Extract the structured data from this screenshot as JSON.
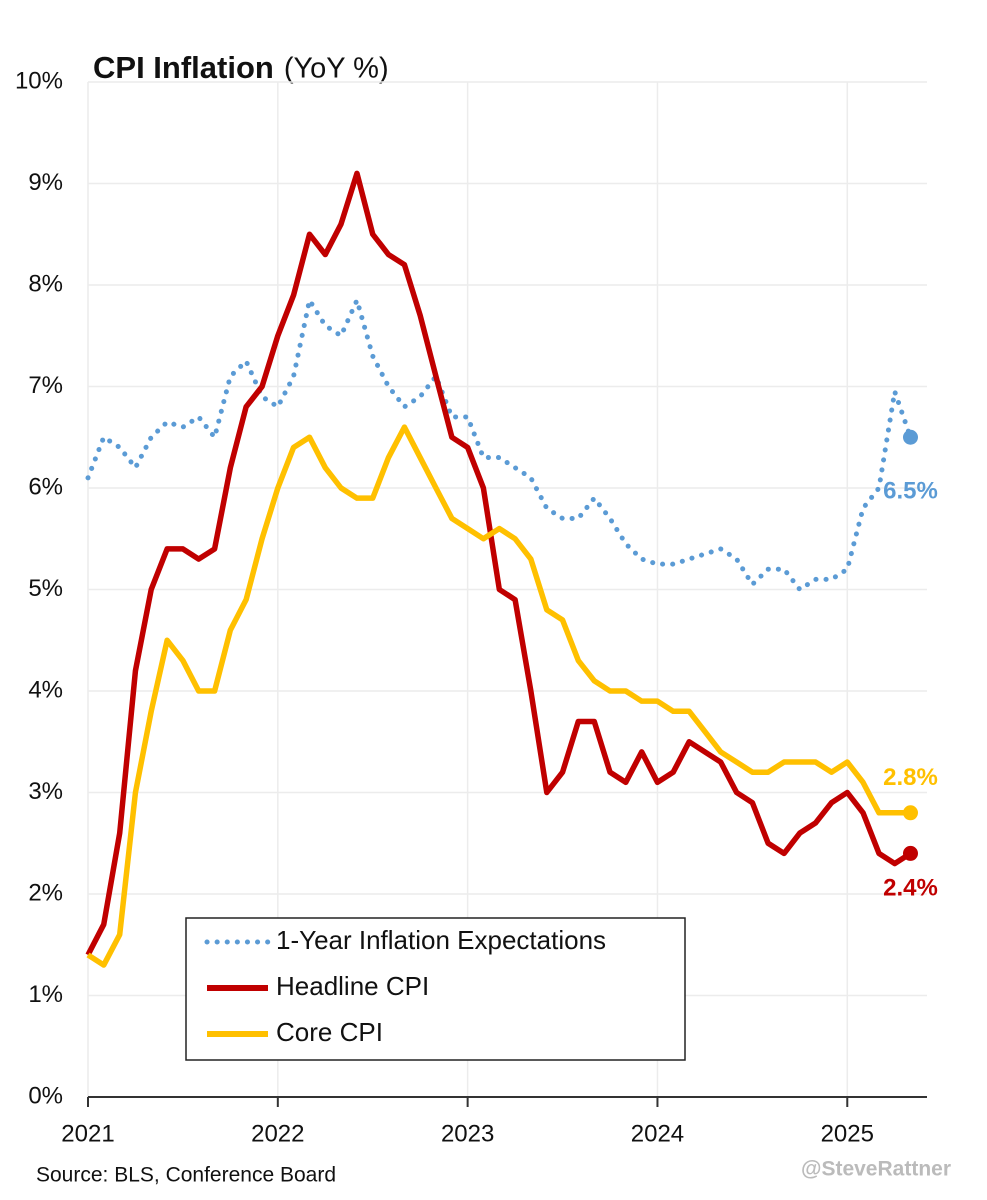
{
  "chart_data": {
    "type": "line",
    "title": "CPI Inflation",
    "subtitle": "(YoY %)",
    "source": "Source: BLS, Conference Board",
    "credit": "@SteveRattner",
    "x": [
      2021,
      2021.083,
      2021.167,
      2021.25,
      2021.333,
      2021.417,
      2021.5,
      2021.583,
      2021.667,
      2021.75,
      2021.833,
      2021.917,
      2022,
      2022.083,
      2022.167,
      2022.25,
      2022.333,
      2022.417,
      2022.5,
      2022.583,
      2022.667,
      2022.75,
      2022.833,
      2022.917,
      2023,
      2023.083,
      2023.167,
      2023.25,
      2023.333,
      2023.417,
      2023.5,
      2023.583,
      2023.667,
      2023.75,
      2023.833,
      2023.917,
      2024,
      2024.083,
      2024.167,
      2024.25,
      2024.333,
      2024.417,
      2024.5,
      2024.583,
      2024.667,
      2024.75,
      2024.833,
      2024.917,
      2025,
      2025.083,
      2025.167,
      2025.25,
      2025.333
    ],
    "xlim": [
      2021,
      2025.42
    ],
    "xticks": [
      2021,
      2022,
      2023,
      2024,
      2025
    ],
    "ylim": [
      0,
      10
    ],
    "yticks": [
      {
        "value": 0,
        "label": "0%"
      },
      {
        "value": 1,
        "label": "1%"
      },
      {
        "value": 2,
        "label": "2%"
      },
      {
        "value": 3,
        "label": "3%"
      },
      {
        "value": 4,
        "label": "4%"
      },
      {
        "value": 5,
        "label": "5%"
      },
      {
        "value": 6,
        "label": "6%"
      },
      {
        "value": 7,
        "label": "7%"
      },
      {
        "value": 8,
        "label": "8%"
      },
      {
        "value": 9,
        "label": "9%"
      },
      {
        "value": 10,
        "label": "10%"
      }
    ],
    "grid": true,
    "legend": "lower left",
    "series": [
      {
        "name": "1-Year Inflation Expectations",
        "color": "#5b9bd5",
        "style": "dotted",
        "end_label": "6.5%",
        "values": [
          6.1,
          6.5,
          6.4,
          6.2,
          6.5,
          6.65,
          6.6,
          6.7,
          6.5,
          7.1,
          7.25,
          6.9,
          6.8,
          7.1,
          7.85,
          7.6,
          7.5,
          7.85,
          7.3,
          7.0,
          6.8,
          6.9,
          7.1,
          6.7,
          6.7,
          6.3,
          6.3,
          6.2,
          6.1,
          5.8,
          5.7,
          5.7,
          5.9,
          5.7,
          5.45,
          5.3,
          5.25,
          5.25,
          5.3,
          5.35,
          5.4,
          5.3,
          5.05,
          5.2,
          5.2,
          5.0,
          5.1,
          5.1,
          5.2,
          5.8,
          6.0,
          6.95,
          6.5
        ]
      },
      {
        "name": "Headline CPI",
        "color": "#c00000",
        "style": "solid",
        "end_label": "2.4%",
        "values": [
          1.4,
          1.7,
          2.6,
          4.2,
          5.0,
          5.4,
          5.4,
          5.3,
          5.4,
          6.2,
          6.8,
          7.0,
          7.5,
          7.9,
          8.5,
          8.3,
          8.6,
          9.1,
          8.5,
          8.3,
          8.2,
          7.7,
          7.1,
          6.5,
          6.4,
          6.0,
          5.0,
          4.9,
          4.0,
          3.0,
          3.2,
          3.7,
          3.7,
          3.2,
          3.1,
          3.4,
          3.1,
          3.2,
          3.5,
          3.4,
          3.3,
          3.0,
          2.9,
          2.5,
          2.4,
          2.6,
          2.7,
          2.9,
          3.0,
          2.8,
          2.4,
          2.3,
          2.4
        ]
      },
      {
        "name": "Core CPI",
        "color": "#ffc000",
        "style": "solid",
        "end_label": "2.8%",
        "values": [
          1.4,
          1.3,
          1.6,
          3.0,
          3.8,
          4.5,
          4.3,
          4.0,
          4.0,
          4.6,
          4.9,
          5.5,
          6.0,
          6.4,
          6.5,
          6.2,
          6.0,
          5.9,
          5.9,
          6.3,
          6.6,
          6.3,
          6.0,
          5.7,
          5.6,
          5.5,
          5.6,
          5.5,
          5.3,
          4.8,
          4.7,
          4.3,
          4.1,
          4.0,
          4.0,
          3.9,
          3.9,
          3.8,
          3.8,
          3.6,
          3.4,
          3.3,
          3.2,
          3.2,
          3.3,
          3.3,
          3.3,
          3.2,
          3.3,
          3.1,
          2.8,
          2.8,
          2.8
        ]
      }
    ]
  }
}
